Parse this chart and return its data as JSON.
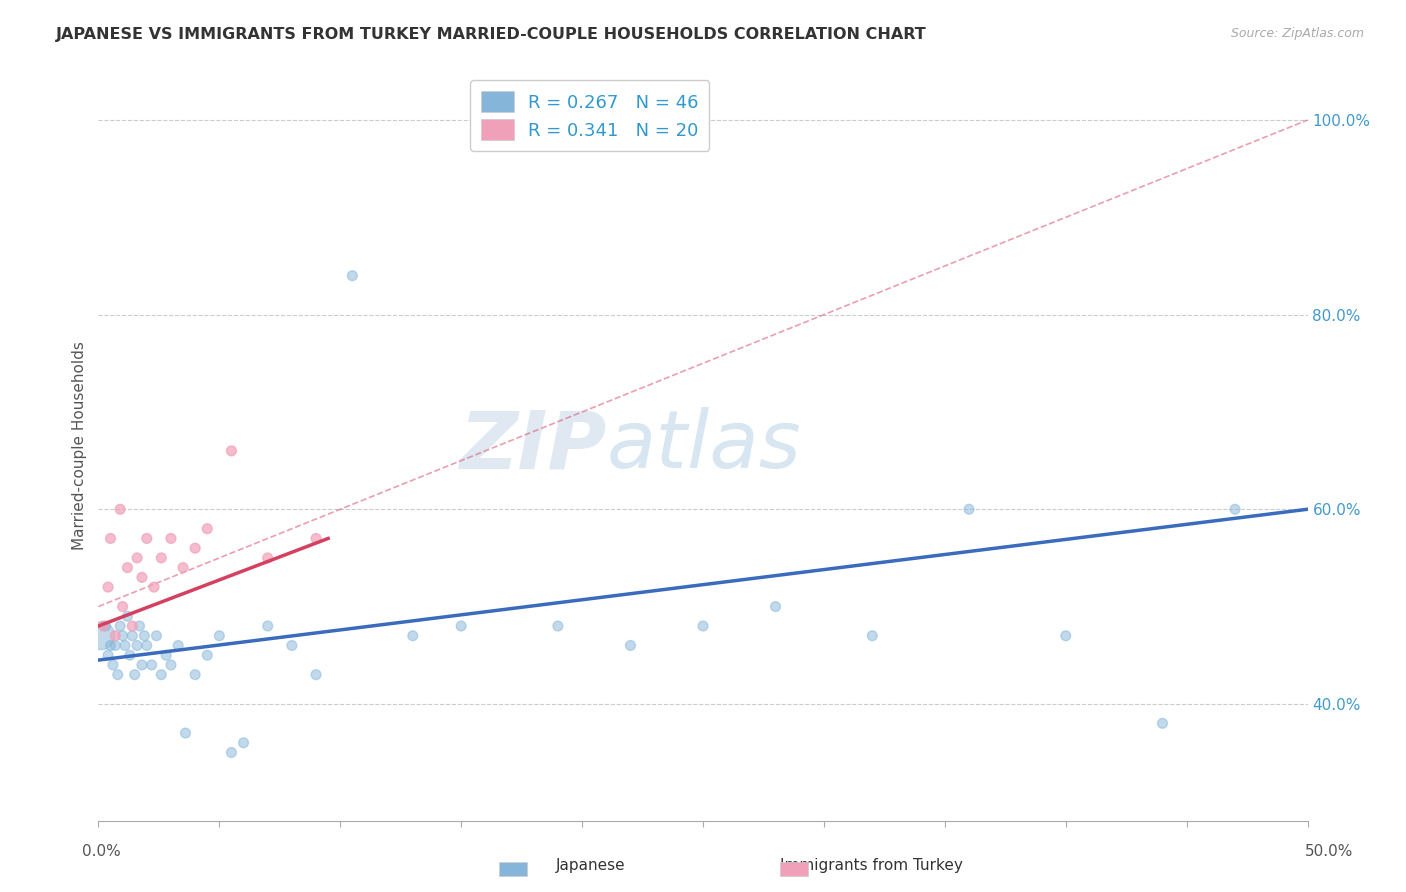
{
  "title": "JAPANESE VS IMMIGRANTS FROM TURKEY MARRIED-COUPLE HOUSEHOLDS CORRELATION CHART",
  "source": "Source: ZipAtlas.com",
  "ylabel": "Married-couple Households",
  "xlim": [
    0.0,
    50.0
  ],
  "ylim": [
    28.0,
    105.0
  ],
  "legend_r1": "R = 0.267",
  "legend_n1": "N = 46",
  "legend_r2": "R = 0.341",
  "legend_n2": "N = 20",
  "color_japanese": "#85b5d9",
  "color_turkey": "#f0a0b8",
  "color_trendline_japanese": "#3a6bbc",
  "color_trendline_turkey": "#d44060",
  "color_dashed": "#d44060",
  "watermark_zip": "ZIP",
  "watermark_atlas": "atlas",
  "yticks": [
    40,
    60,
    80,
    100
  ],
  "ytick_labels": [
    "40.0%",
    "60.0%",
    "80.0%",
    "100.0%"
  ],
  "japanese_x": [
    0.1,
    0.3,
    0.4,
    0.5,
    0.6,
    0.7,
    0.8,
    0.9,
    1.0,
    1.1,
    1.2,
    1.3,
    1.4,
    1.5,
    1.6,
    1.7,
    1.8,
    1.9,
    2.0,
    2.2,
    2.4,
    2.6,
    2.8,
    3.0,
    3.3,
    3.6,
    4.0,
    4.5,
    5.0,
    5.5,
    6.0,
    7.0,
    8.0,
    9.0,
    10.5,
    13.0,
    15.0,
    19.0,
    22.0,
    25.0,
    28.0,
    32.0,
    36.0,
    40.0,
    44.0,
    47.0
  ],
  "japanese_y": [
    47.0,
    48.0,
    45.0,
    46.0,
    44.0,
    46.0,
    43.0,
    48.0,
    47.0,
    46.0,
    49.0,
    45.0,
    47.0,
    43.0,
    46.0,
    48.0,
    44.0,
    47.0,
    46.0,
    44.0,
    47.0,
    43.0,
    45.0,
    44.0,
    46.0,
    37.0,
    43.0,
    45.0,
    47.0,
    35.0,
    36.0,
    48.0,
    46.0,
    43.0,
    84.0,
    47.0,
    48.0,
    48.0,
    46.0,
    48.0,
    50.0,
    47.0,
    60.0,
    47.0,
    38.0,
    60.0
  ],
  "japanese_sizes": [
    400,
    50,
    50,
    50,
    50,
    50,
    50,
    50,
    50,
    50,
    50,
    50,
    50,
    50,
    50,
    50,
    50,
    50,
    50,
    50,
    50,
    50,
    50,
    50,
    50,
    50,
    50,
    50,
    50,
    50,
    50,
    50,
    50,
    50,
    50,
    50,
    50,
    50,
    50,
    50,
    50,
    50,
    50,
    50,
    50,
    50
  ],
  "turkey_x": [
    0.2,
    0.4,
    0.5,
    0.7,
    0.9,
    1.0,
    1.2,
    1.4,
    1.6,
    1.8,
    2.0,
    2.3,
    2.6,
    3.0,
    3.5,
    4.0,
    4.5,
    5.5,
    7.0,
    9.0
  ],
  "turkey_y": [
    48.0,
    52.0,
    57.0,
    47.0,
    60.0,
    50.0,
    54.0,
    48.0,
    55.0,
    53.0,
    57.0,
    52.0,
    55.0,
    57.0,
    54.0,
    56.0,
    58.0,
    66.0,
    55.0,
    57.0
  ],
  "turkey_sizes": [
    50,
    50,
    50,
    50,
    50,
    50,
    50,
    50,
    50,
    50,
    50,
    50,
    50,
    50,
    50,
    50,
    50,
    50,
    50,
    50
  ],
  "trendline_j_x0": 0.0,
  "trendline_j_x1": 50.0,
  "trendline_j_y0": 44.5,
  "trendline_j_y1": 60.0,
  "trendline_t_x0": 0.0,
  "trendline_t_x1": 9.5,
  "trendline_t_y0": 48.0,
  "trendline_t_y1": 57.0,
  "trendline_dash_x0": 0.0,
  "trendline_dash_x1": 50.0,
  "trendline_dash_y0": 50.0,
  "trendline_dash_y1": 100.0
}
